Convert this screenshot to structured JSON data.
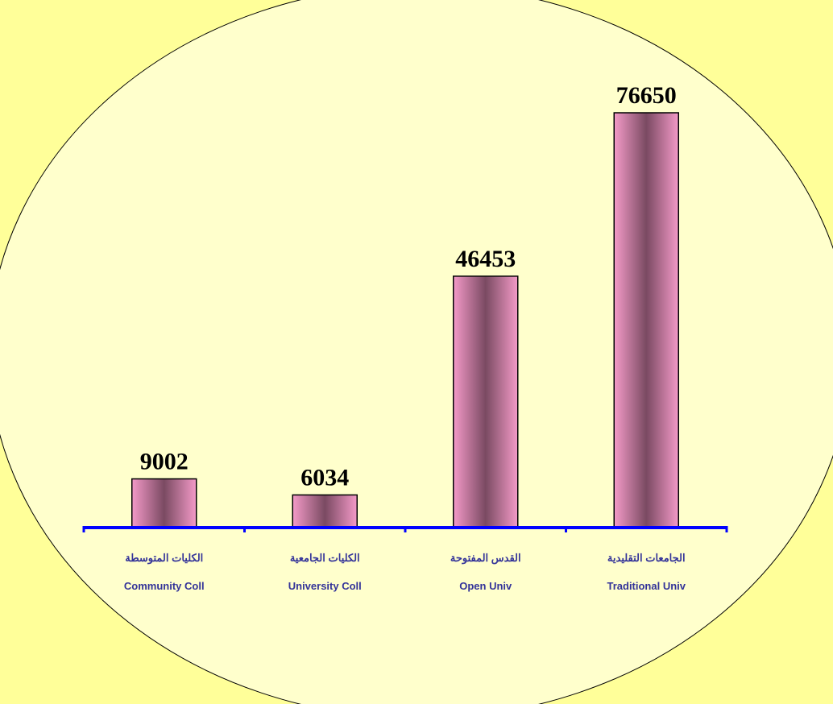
{
  "chart_data": {
    "type": "bar",
    "title": "",
    "xlabel": "",
    "ylabel": "",
    "ylim": [
      0,
      80000
    ],
    "grid": false,
    "legend": "none",
    "categories": [
      {
        "ar": "الكليات المتوسطة",
        "en": "Community Coll"
      },
      {
        "ar": "الكليات الجامعية",
        "en": "University Coll"
      },
      {
        "ar": "القدس المفتوحة",
        "en": "Open Univ"
      },
      {
        "ar": "الجامعات التقليدية",
        "en": "Traditional Univ"
      }
    ],
    "values": [
      9002,
      6034,
      46453,
      76650
    ],
    "data_labels": [
      "9002",
      "6034",
      "46453",
      "76650"
    ]
  },
  "colors": {
    "background": "#FFFF99",
    "ellipse_fill": "#FFFFCC",
    "bar_edge": "#F49AC8",
    "bar_center": "#7A4A62",
    "axis": "#0000FF",
    "category_text": "#333399"
  }
}
